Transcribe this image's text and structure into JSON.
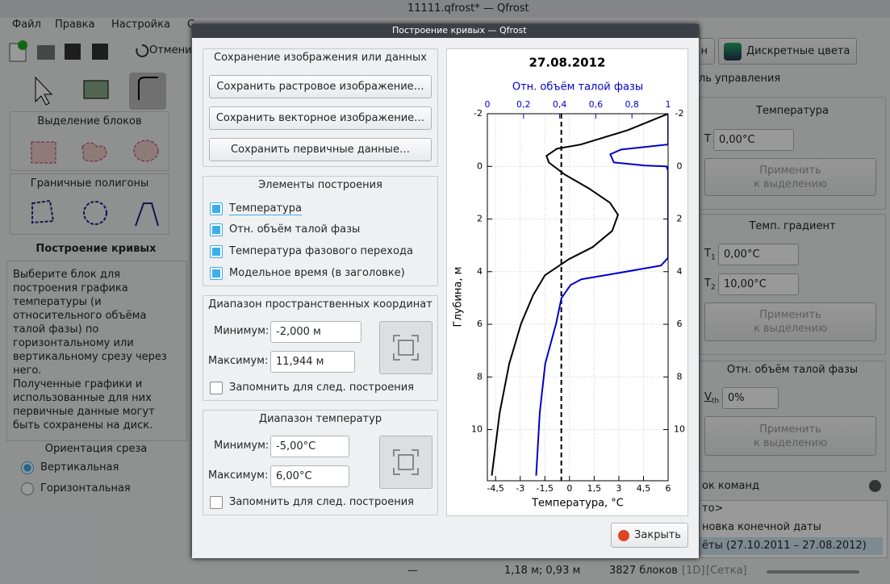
{
  "window": {
    "title": "11111.qfrost* — Qfrost"
  },
  "menu": [
    "Файл",
    "Правка",
    "Настройка",
    "С"
  ],
  "toolbar": {
    "undo": "Отмени",
    "right_button": "н",
    "colors_button": "Дискретные цвета"
  },
  "left_panel": {
    "block_selection": "Выделение блоков",
    "boundary_polygons": "Граничные полигоны",
    "curves_title": "Построение кривых",
    "description": [
      "Выберите блок для",
      "построения графика",
      "температуры (и",
      "относительного объёма",
      "талой фазы) по",
      "горизонтальному или",
      "вертикальному срезу через",
      "него.",
      "Полученные графики и",
      "использованные для них",
      "первичные данные могут",
      "быть сохранены на диск."
    ],
    "orientation": "Ориентация среза",
    "vertical": "Вертикальная",
    "horizontal": "Горизонтальная"
  },
  "right_panel": {
    "title": "ль управления",
    "temperature": {
      "title": "Температура",
      "label": "T",
      "value": "0,00°C",
      "apply": [
        "Применить",
        "к выделению"
      ]
    },
    "gradient": {
      "title": "Темп. градиент",
      "t1_label": "T",
      "t1_sub": "1",
      "t1_value": "0,00°C",
      "t2_label": "T",
      "t2_sub": "2",
      "t2_value": "10,00°C",
      "apply": [
        "Применить",
        "к выделению"
      ]
    },
    "thawed": {
      "title": "Отн. объём талой фазы",
      "label": "V",
      "sub": "th",
      "value": "0%",
      "apply": [
        "Применить",
        "к выделению"
      ]
    }
  },
  "commands": {
    "title": "ок команд",
    "items": [
      "то>",
      "новка конечной даты",
      "ёты (27.10.2011 – 27.08.2012)"
    ]
  },
  "status_bar": {
    "tool": "—",
    "coords": "1,18 м; 0,93 м",
    "blocks": "3827 блоков",
    "mode": "[1D]",
    "grid": "[Сетка]"
  },
  "dialog": {
    "title": "Построение кривых — Qfrost",
    "save_group": {
      "title": "Сохранение изображения или данных",
      "buttons": [
        "Сохранить растровое изображение…",
        "Сохранить векторное изображение…",
        "Сохранить первичные данные…"
      ]
    },
    "elements_group": {
      "title": "Элементы построения",
      "items": [
        "Температура",
        "Отн. объём талой фазы",
        "Температура фазового перехода",
        "Модельное время (в заголовке)"
      ]
    },
    "space_range": {
      "title": "Диапазон пространственных координат",
      "min_label": "Минимум:",
      "min_value": "-2,000 м",
      "max_label": "Максимум:",
      "max_value": "11,944 м",
      "remember": "Запомнить для след. построения"
    },
    "temp_range": {
      "title": "Диапазон температур",
      "min_label": "Минимум:",
      "min_value": "-5,00°C",
      "max_label": "Максимум:",
      "max_value": "6,00°C",
      "remember": "Запомнить для след. построения"
    },
    "close": "Закрыть"
  },
  "chart_data": {
    "type": "line",
    "title": "27.08.2012",
    "x2_label": "Отн. объём талой фазы",
    "xlabel": "Температура, °C",
    "ylabel": "Глубина, м",
    "xlim": [
      -5,
      6
    ],
    "xticks": [
      {
        "value": -4.5,
        "label": "-4,5"
      },
      -3,
      {
        "value": -1.5,
        "label": "-1,5"
      },
      0,
      {
        "value": 1.5,
        "label": "1,5"
      },
      3,
      {
        "value": 4.5,
        "label": "4,5"
      },
      6
    ],
    "x2lim": [
      0,
      1
    ],
    "x2ticks": [
      0,
      {
        "value": 0.2,
        "label": "0,2"
      },
      {
        "value": 0.4,
        "label": "0,4"
      },
      {
        "value": 0.6,
        "label": "0,6"
      },
      {
        "value": 0.8,
        "label": "0,8"
      },
      1
    ],
    "ylim": [
      -2,
      11.944
    ],
    "y_inverted": true,
    "yticks": [
      -2,
      0,
      2,
      4,
      6,
      8,
      10
    ],
    "y2lim": [
      -2,
      11.944
    ],
    "y2ticks": [
      -2,
      0,
      2,
      4,
      6,
      8,
      10
    ],
    "grid": true,
    "phase_transition_temperature": -0.5,
    "phase_color": "#000000",
    "series": [
      {
        "color": "#000000",
        "axis": "x",
        "x": [
          6,
          3.57,
          0.68,
          -0.77,
          -1.4,
          -1.26,
          -0.29,
          1.16,
          2.46,
          2.95,
          2.6,
          1.4,
          -0.05,
          -1.5,
          -2.22,
          -2.95,
          -3.67,
          -4.25,
          -4.73
        ],
        "values": [
          -2,
          -1.38,
          -0.83,
          -0.67,
          -0.4,
          -0.15,
          0.31,
          0.83,
          1.38,
          1.84,
          2.45,
          3.07,
          3.53,
          4.14,
          4.9,
          5.98,
          7.5,
          9.36,
          11.75
        ]
      },
      {
        "color": "#0000cc",
        "axis": "x2",
        "x": [
          1,
          1,
          0.74,
          0.68,
          0.7,
          0.875,
          0.99,
          1,
          1,
          0.96,
          0.7,
          0.52,
          0.46,
          0.41,
          0.38,
          0.32,
          0.29,
          0.27
        ],
        "values": [
          -2,
          -0.83,
          -0.64,
          -0.46,
          -0.15,
          -0.03,
          0,
          0.15,
          3.47,
          3.77,
          4.08,
          4.29,
          4.51,
          5,
          5.98,
          7.5,
          9.36,
          11.75
        ]
      }
    ]
  }
}
